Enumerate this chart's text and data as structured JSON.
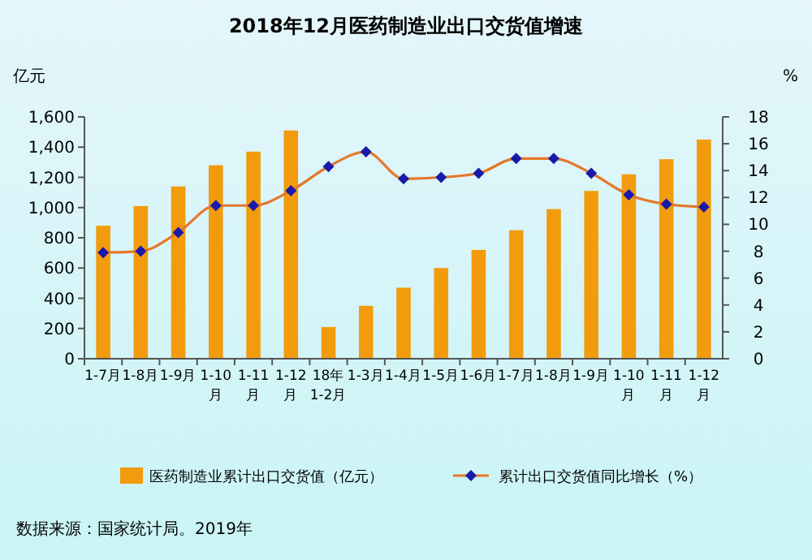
{
  "chart_data": {
    "type": "bar",
    "title": "2018年12月医药制造业出口交货值增速",
    "ylabel": "亿元",
    "y2label": "%",
    "categories": [
      "1-7月",
      "1-8月",
      "1-9月",
      "1-10月",
      "1-11月",
      "1-12月",
      "18年1-2月",
      "1-3月",
      "1-4月",
      "1-5月",
      "1-6月",
      "1-7月",
      "1-8月",
      "1-9月",
      "1-10月",
      "1-11月",
      "1-12月"
    ],
    "series": [
      {
        "name": "医药制造业累计出口交货值（亿元）",
        "color": "#f29b0c",
        "values": [
          880,
          1010,
          1140,
          1280,
          1370,
          1510,
          210,
          350,
          470,
          600,
          720,
          850,
          990,
          1110,
          1220,
          1320,
          1450
        ]
      },
      {
        "name": "累计出口交货值同比增长（%）",
        "type": "line",
        "axis": "y2",
        "color": "#e5782a",
        "marker": "diamond",
        "values": [
          7.9,
          8.0,
          9.4,
          11.4,
          11.4,
          12.5,
          14.3,
          15.4,
          13.4,
          13.5,
          13.8,
          14.9,
          14.9,
          13.8,
          12.2,
          11.5,
          11.3
        ]
      }
    ],
    "ylim": [
      0,
      1600
    ],
    "yticks": [
      0,
      {
        "value": 200,
        "label": "200"
      },
      {
        "value": 400,
        "label": "400"
      },
      {
        "value": 600,
        "label": "600"
      },
      {
        "value": 800,
        "label": "800"
      },
      {
        "value": 1000,
        "label": "1,000"
      },
      {
        "value": 1200,
        "label": "1,200"
      },
      {
        "value": 1400,
        "label": "1,400"
      },
      {
        "value": 1600,
        "label": "1,600"
      }
    ],
    "y2lim": [
      0,
      18
    ],
    "y2ticks": [
      0,
      2,
      4,
      6,
      8,
      10,
      12,
      14,
      16,
      18
    ],
    "grid": false,
    "legend": "bottom",
    "annotations": [
      "数据来源：国家统计局。2019年"
    ]
  }
}
